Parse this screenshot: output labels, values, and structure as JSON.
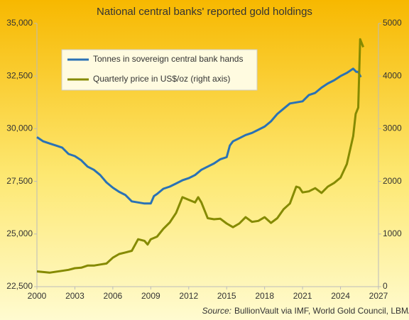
{
  "chart_data": {
    "type": "line",
    "title": "National central banks' reported gold holdings",
    "source_label": "Source:",
    "source": "BullionVault via IMF, World Gold Council, LBMA",
    "legend": "upper left",
    "xlim": [
      2000,
      2027
    ],
    "xticks": [
      2000,
      2003,
      2006,
      2009,
      2012,
      2015,
      2018,
      2021,
      2024,
      2027
    ],
    "ylim": [
      22500,
      35000
    ],
    "yticks": [
      {
        "value": 22500,
        "label": "22,500"
      },
      {
        "value": 25000,
        "label": "25,000"
      },
      {
        "value": 27500,
        "label": "27,500"
      },
      {
        "value": 30000,
        "label": "30,000"
      },
      {
        "value": 32500,
        "label": "32,500"
      },
      {
        "value": 35000,
        "label": "35,000"
      }
    ],
    "y2lim": [
      0,
      5000
    ],
    "y2ticks": [
      0,
      1000,
      2000,
      3000,
      4000,
      5000
    ],
    "series": [
      {
        "name": "Tonnes in sovereign central bank hands",
        "color": "#2a72b5",
        "x": [
          2000,
          2000.5,
          2001,
          2001.5,
          2002,
          2002.5,
          2003,
          2003.5,
          2004,
          2004.5,
          2005,
          2005.5,
          2006,
          2006.5,
          2007,
          2007.5,
          2008,
          2008.5,
          2009,
          2009.25,
          2009.5,
          2010,
          2010.5,
          2011,
          2011.5,
          2012,
          2012.5,
          2013,
          2013.5,
          2014,
          2014.5,
          2015,
          2015.25,
          2015.5,
          2016,
          2016.5,
          2017,
          2017.5,
          2018,
          2018.5,
          2019,
          2019.5,
          2020,
          2020.5,
          2021,
          2021.5,
          2022,
          2022.5,
          2023,
          2023.5,
          2024,
          2024.5,
          2025,
          2025.25,
          2025.4,
          2025.6
        ],
        "values": [
          29600,
          29400,
          29300,
          29200,
          29100,
          28800,
          28700,
          28500,
          28200,
          28050,
          27800,
          27450,
          27200,
          27000,
          26850,
          26550,
          26500,
          26450,
          26450,
          26800,
          26900,
          27150,
          27250,
          27400,
          27550,
          27650,
          27800,
          28050,
          28200,
          28350,
          28550,
          28650,
          29200,
          29400,
          29550,
          29700,
          29800,
          29950,
          30100,
          30350,
          30700,
          30950,
          31200,
          31250,
          31300,
          31600,
          31700,
          31950,
          32150,
          32300,
          32500,
          32650,
          32850,
          32700,
          32700,
          32450
        ]
      },
      {
        "name": "Quarterly price in US$/oz (right axis)",
        "color": "#858a00",
        "axis": "y2",
        "x": [
          2000,
          2001,
          2002,
          2002.5,
          2003,
          2003.5,
          2004,
          2004.5,
          2005,
          2005.5,
          2006,
          2006.5,
          2007,
          2007.5,
          2008,
          2008.5,
          2008.75,
          2009,
          2009.5,
          2010,
          2010.5,
          2011,
          2011.5,
          2012,
          2012.5,
          2012.75,
          2013,
          2013.5,
          2014,
          2014.5,
          2015,
          2015.5,
          2016,
          2016.5,
          2017,
          2017.5,
          2018,
          2018.5,
          2019,
          2019.5,
          2020,
          2020.5,
          2020.75,
          2021,
          2021.5,
          2022,
          2022.5,
          2023,
          2023.5,
          2024,
          2024.5,
          2025,
          2025.2,
          2025.4,
          2025.55,
          2025.8
        ],
        "values": [
          290,
          265,
          300,
          320,
          350,
          360,
          400,
          400,
          420,
          440,
          550,
          620,
          650,
          680,
          900,
          870,
          800,
          900,
          950,
          1100,
          1220,
          1400,
          1700,
          1650,
          1600,
          1700,
          1600,
          1300,
          1280,
          1290,
          1200,
          1130,
          1200,
          1320,
          1230,
          1250,
          1320,
          1210,
          1300,
          1470,
          1580,
          1900,
          1880,
          1790,
          1810,
          1870,
          1780,
          1900,
          1970,
          2070,
          2330,
          2860,
          3280,
          3400,
          4700,
          4550
        ]
      }
    ]
  }
}
